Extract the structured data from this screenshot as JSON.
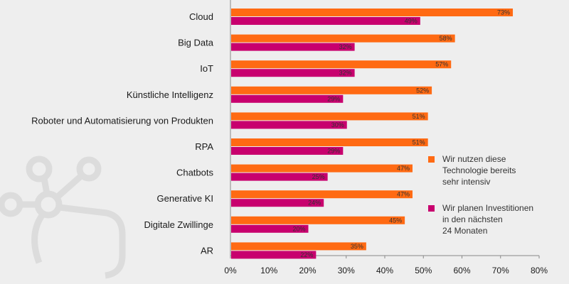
{
  "chart_data": {
    "type": "bar",
    "orientation": "horizontal",
    "categories": [
      "Cloud",
      "Big Data",
      "IoT",
      "Künstliche Intelligenz",
      "Roboter und Automatisierung von Produkten",
      "RPA",
      "Chatbots",
      "Generative KI",
      "Digitale Zwillinge",
      "AR"
    ],
    "series": [
      {
        "name": "Wir nutzen diese Technologie bereits sehr intensiv",
        "legend_lines": [
          "Wir nutzen diese",
          "Technologie bereits",
          "sehr intensiv"
        ],
        "color": "#ff6a13",
        "values": [
          73,
          58,
          57,
          52,
          51,
          51,
          47,
          47,
          45,
          35
        ],
        "labels": [
          "73%",
          "58%",
          "57%",
          "52%",
          "51%",
          "51%",
          "47%",
          "47%",
          "45%",
          "35%"
        ]
      },
      {
        "name": "Wir planen Investitionen in den nächsten 24 Monaten",
        "legend_lines": [
          "Wir planen Investitionen",
          "in den nächsten",
          "24 Monaten"
        ],
        "color": "#c8006e",
        "values": [
          49,
          32,
          32,
          29,
          30,
          29,
          25,
          24,
          20,
          22
        ],
        "labels": [
          "49%",
          "32%",
          "32%",
          "29%",
          "30%",
          "29%",
          "25%",
          "24%",
          "20%",
          "22%"
        ]
      }
    ],
    "xlim": [
      0,
      80
    ],
    "x_ticks": [
      0,
      10,
      20,
      30,
      40,
      50,
      60,
      70,
      80
    ],
    "x_tick_labels": [
      "0%",
      "10%",
      "20%",
      "30%",
      "40%",
      "50%",
      "60%",
      "70%",
      "80%"
    ],
    "legend_position": "right",
    "title": "",
    "xlabel": "",
    "ylabel": ""
  },
  "colors": {
    "background": "#eeeeee",
    "axis": "#888888",
    "decoration": "#dcdcdc"
  }
}
